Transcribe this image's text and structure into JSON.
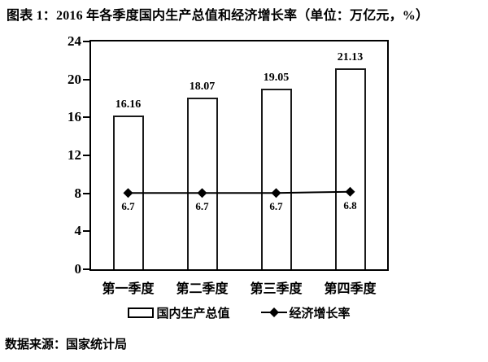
{
  "title": "图表 1：2016 年各季度国内生产总值和经济增长率（单位：万亿元，%）",
  "source": "数据来源：国家统计局",
  "chart_data": {
    "type": "bar",
    "title": "图表 1：2016 年各季度国内生产总值和经济增长率（单位：万亿元，%）",
    "categories": [
      "第一季度",
      "第二季度",
      "第三季度",
      "第四季度"
    ],
    "series": [
      {
        "name": "国内生产总值",
        "type": "bar",
        "unit": "万亿元",
        "axis": "left",
        "values": [
          16.16,
          18.07,
          19.05,
          21.13
        ],
        "labels": [
          "16.16",
          "18.07",
          "19.05",
          "21.13"
        ]
      },
      {
        "name": "经济增长率",
        "type": "line",
        "unit": "%",
        "axis": "hidden-right",
        "values": [
          6.7,
          6.7,
          6.7,
          6.8
        ],
        "labels": [
          "6.7",
          "6.7",
          "6.7",
          "6.8"
        ]
      }
    ],
    "left_axis": {
      "min": 0,
      "max": 24,
      "tick_step": 4,
      "ticks": [
        0,
        4,
        8,
        12,
        16,
        20,
        24
      ]
    },
    "hidden_right_axis": {
      "min": 0,
      "max": 20
    },
    "legend": [
      "国内生产总值",
      "经济增长率"
    ],
    "legend_position": "bottom",
    "grid": false,
    "colors": {
      "background": "#ffffff",
      "bar_fill": "#ffffff",
      "bar_border": "#1a1a1a",
      "line": "#000000",
      "marker": "#000000",
      "text": "#000000"
    }
  }
}
